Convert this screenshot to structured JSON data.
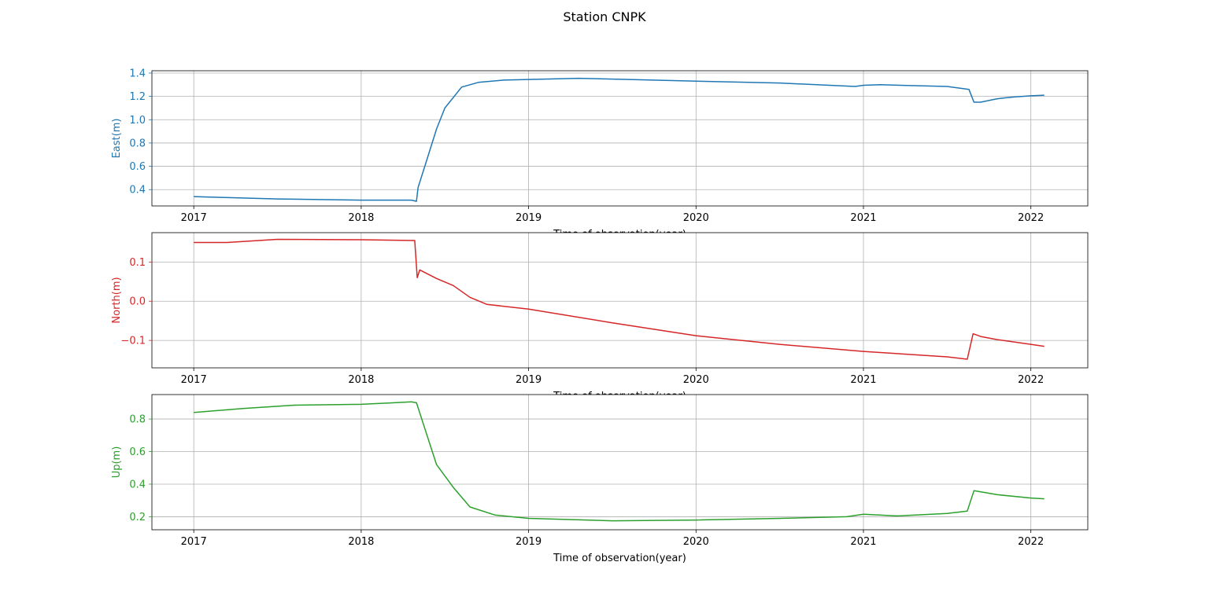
{
  "figure": {
    "suptitle": "Station CNPK"
  },
  "chart_data": [
    {
      "type": "line",
      "title": "",
      "xlabel": "Time of observation(year)",
      "ylabel": "East(m)",
      "color": "#1f77b4",
      "grid": true,
      "xlim": [
        2016.75,
        2022.34
      ],
      "ylim": [
        0.26,
        1.42
      ],
      "xticks": [
        2017,
        2018,
        2019,
        2020,
        2021,
        2022
      ],
      "xtick_labels": [
        "2017",
        "2018",
        "2019",
        "2020",
        "2021",
        "2022"
      ],
      "yticks": [
        0.4,
        0.6,
        0.8,
        1.0,
        1.2,
        1.4
      ],
      "ytick_labels": [
        "0.4",
        "0.6",
        "0.8",
        "1.0",
        "1.2",
        "1.4"
      ],
      "x": [
        2017.0,
        2017.5,
        2018.0,
        2018.3,
        2018.33,
        2018.34,
        2018.38,
        2018.45,
        2018.5,
        2018.6,
        2018.7,
        2018.85,
        2019.0,
        2019.3,
        2019.6,
        2020.0,
        2020.5,
        2020.95,
        2021.0,
        2021.1,
        2021.5,
        2021.63,
        2021.66,
        2021.7,
        2021.8,
        2021.9,
        2022.0,
        2022.08
      ],
      "y": [
        0.34,
        0.32,
        0.31,
        0.31,
        0.3,
        0.42,
        0.6,
        0.92,
        1.1,
        1.28,
        1.32,
        1.34,
        1.345,
        1.355,
        1.345,
        1.33,
        1.315,
        1.285,
        1.295,
        1.3,
        1.285,
        1.26,
        1.15,
        1.15,
        1.18,
        1.195,
        1.205,
        1.21
      ]
    },
    {
      "type": "line",
      "title": "",
      "xlabel": "Time of observation(year)",
      "ylabel": "North(m)",
      "color": "#d62728",
      "grid": true,
      "xlim": [
        2016.75,
        2022.34
      ],
      "ylim": [
        -0.17,
        0.175
      ],
      "xticks": [
        2017,
        2018,
        2019,
        2020,
        2021,
        2022
      ],
      "xtick_labels": [
        "2017",
        "2018",
        "2019",
        "2020",
        "2021",
        "2022"
      ],
      "yticks": [
        -0.1,
        0.0,
        0.1
      ],
      "ytick_labels": [
        "−0.1",
        "0.0",
        "0.1"
      ],
      "x": [
        2017.0,
        2017.2,
        2017.5,
        2018.0,
        2018.32,
        2018.335,
        2018.35,
        2018.45,
        2018.55,
        2018.65,
        2018.75,
        2019.0,
        2019.5,
        2020.0,
        2020.5,
        2021.0,
        2021.5,
        2021.62,
        2021.655,
        2021.7,
        2021.8,
        2022.0,
        2022.08
      ],
      "y": [
        0.15,
        0.15,
        0.158,
        0.157,
        0.155,
        0.06,
        0.08,
        0.058,
        0.04,
        0.01,
        -0.008,
        -0.02,
        -0.055,
        -0.088,
        -0.11,
        -0.128,
        -0.142,
        -0.148,
        -0.083,
        -0.09,
        -0.098,
        -0.11,
        -0.115
      ]
    },
    {
      "type": "line",
      "title": "",
      "xlabel": "Time of observation(year)",
      "ylabel": "Up(m)",
      "color": "#2ca02c",
      "grid": true,
      "xlim": [
        2016.75,
        2022.34
      ],
      "ylim": [
        0.12,
        0.95
      ],
      "xticks": [
        2017,
        2018,
        2019,
        2020,
        2021,
        2022
      ],
      "xtick_labels": [
        "2017",
        "2018",
        "2019",
        "2020",
        "2021",
        "2022"
      ],
      "yticks": [
        0.2,
        0.4,
        0.6,
        0.8
      ],
      "ytick_labels": [
        "0.2",
        "0.4",
        "0.6",
        "0.8"
      ],
      "x": [
        2017.0,
        2017.3,
        2017.6,
        2018.0,
        2018.3,
        2018.33,
        2018.45,
        2018.55,
        2018.65,
        2018.8,
        2019.0,
        2019.5,
        2020.0,
        2020.5,
        2020.9,
        2021.0,
        2021.2,
        2021.5,
        2021.62,
        2021.66,
        2021.8,
        2022.0,
        2022.08
      ],
      "y": [
        0.84,
        0.865,
        0.885,
        0.89,
        0.905,
        0.9,
        0.52,
        0.38,
        0.26,
        0.21,
        0.19,
        0.175,
        0.18,
        0.19,
        0.2,
        0.215,
        0.205,
        0.22,
        0.235,
        0.36,
        0.335,
        0.315,
        0.31
      ]
    }
  ]
}
